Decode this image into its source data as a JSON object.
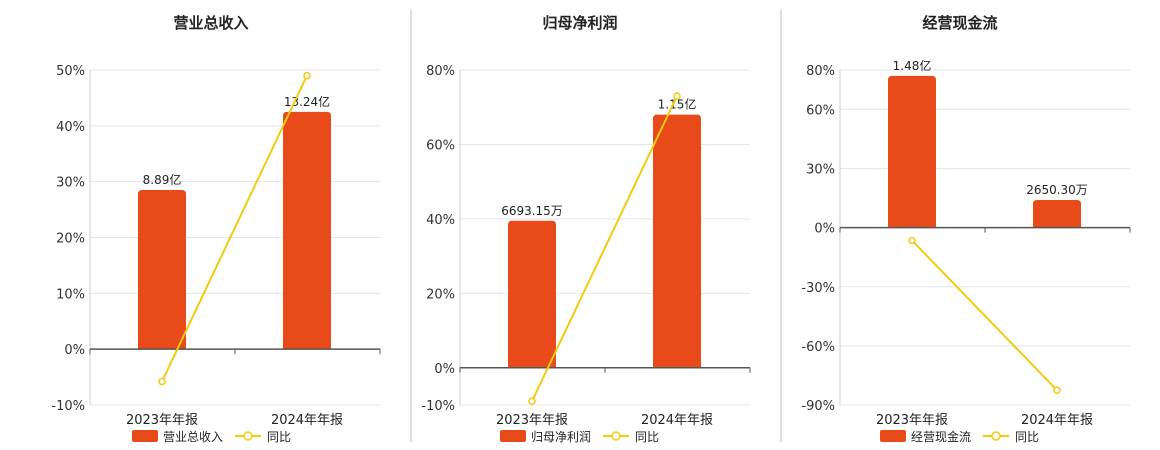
{
  "colors": {
    "bar": "#E84A1A",
    "line": "#F2CB10",
    "grid": "#E4E4EE",
    "axis": "#555555",
    "divider": "#BBBBBB"
  },
  "chart_data": [
    {
      "type": "bar",
      "title": "营业总收入",
      "categories": [
        "2023年年报",
        "2024年年报"
      ],
      "bar_values": [
        28.5,
        42.5
      ],
      "bar_labels": [
        "8.89亿",
        "13.24亿"
      ],
      "line_values": [
        -5.8,
        49.0
      ],
      "yticks": [
        50,
        40,
        30,
        20,
        10,
        0,
        -10
      ],
      "ytick_labels": [
        "50%",
        "40%",
        "30%",
        "20%",
        "10%",
        "0%",
        "-10%"
      ],
      "ylim": [
        -10,
        50
      ],
      "legend": [
        "营业总收入",
        "同比"
      ],
      "grid": true
    },
    {
      "type": "bar",
      "title": "归母净利润",
      "categories": [
        "2023年年报",
        "2024年年报"
      ],
      "bar_values": [
        39.5,
        68.0
      ],
      "bar_labels": [
        "6693.15万",
        "1.15亿"
      ],
      "line_values": [
        -9.0,
        73.0
      ],
      "yticks": [
        80,
        60,
        40,
        20,
        0,
        -10
      ],
      "ytick_labels": [
        "80%",
        "60%",
        "40%",
        "20%",
        "0%",
        "-10%"
      ],
      "ylim": [
        -10,
        80
      ],
      "legend": [
        "归母净利润",
        "同比"
      ],
      "grid": true
    },
    {
      "type": "bar",
      "title": "经营现金流",
      "categories": [
        "2023年年报",
        "2024年年报"
      ],
      "bar_values": [
        77.0,
        14.0
      ],
      "bar_labels": [
        "1.48亿",
        "2650.30万"
      ],
      "line_values": [
        -6.5,
        -82.5
      ],
      "yticks": [
        80,
        60,
        30,
        0,
        -30,
        -60,
        -90
      ],
      "ytick_labels": [
        "80%",
        "60%",
        "30%",
        "0%",
        "-30%",
        "-60%",
        "-90%"
      ],
      "ylim": [
        -90,
        80
      ],
      "legend": [
        "经营现金流",
        "同比"
      ],
      "grid": true
    }
  ]
}
